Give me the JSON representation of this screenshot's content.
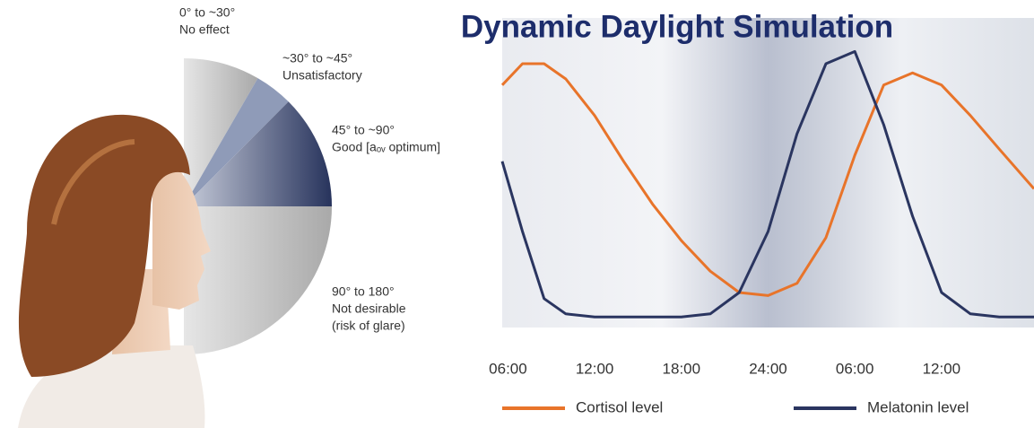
{
  "diagram": {
    "zones": [
      {
        "range": "0° to ~30°",
        "description": [
          "No effect"
        ]
      },
      {
        "range": "~30° to ~45°",
        "description": [
          "Unsatisfactory"
        ]
      },
      {
        "range": "45° to ~90°",
        "description": [
          "Good [aₒᵥ optimum]"
        ]
      },
      {
        "range": "90° to 180°",
        "description": [
          "Not desirable",
          "(risk of glare)"
        ]
      }
    ]
  },
  "chart_data": {
    "type": "line",
    "title": "Dynamic Daylight Simulation",
    "x": [
      5.6,
      7,
      8.5,
      10,
      12,
      14,
      16,
      18,
      20,
      22,
      24,
      26,
      28,
      30,
      32,
      34,
      36,
      38,
      40,
      42.4
    ],
    "xlim": [
      5.6,
      42.4
    ],
    "xticks": [
      {
        "value": 6,
        "label": "06:00"
      },
      {
        "value": 12,
        "label": "12:00"
      },
      {
        "value": 18,
        "label": "18:00"
      },
      {
        "value": 24,
        "label": "24:00"
      },
      {
        "value": 30,
        "label": "06:00"
      },
      {
        "value": 36,
        "label": "12:00"
      }
    ],
    "ylim": [
      0,
      100
    ],
    "series": [
      {
        "name": "Cortisol level",
        "color": "#e8742a",
        "values": [
          78,
          85,
          85,
          80,
          68,
          53,
          39,
          27,
          17,
          10,
          9,
          13,
          28,
          55,
          78,
          82,
          78,
          68,
          57,
          44
        ]
      },
      {
        "name": "Melatonin level",
        "color": "#2a3560",
        "values": [
          53,
          30,
          8,
          3,
          2,
          2,
          2,
          2,
          3,
          10,
          30,
          62,
          85,
          89,
          65,
          35,
          10,
          3,
          2,
          2
        ]
      }
    ]
  }
}
